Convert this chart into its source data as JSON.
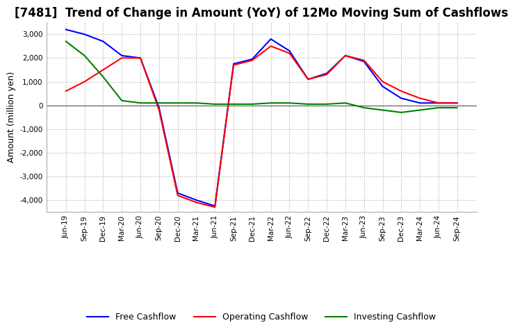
{
  "title": "[7481]  Trend of Change in Amount (YoY) of 12Mo Moving Sum of Cashflows",
  "ylabel": "Amount (million yen)",
  "x_labels": [
    "Jun-19",
    "Sep-19",
    "Dec-19",
    "Mar-20",
    "Jun-20",
    "Sep-20",
    "Dec-20",
    "Mar-21",
    "Jun-21",
    "Sep-21",
    "Dec-21",
    "Mar-22",
    "Jun-22",
    "Sep-22",
    "Dec-22",
    "Mar-23",
    "Jun-23",
    "Sep-23",
    "Dec-23",
    "Mar-24",
    "Jun-24",
    "Sep-24"
  ],
  "operating": [
    600,
    1000,
    1500,
    2000,
    2000,
    -200,
    -3800,
    -4100,
    -4300,
    1700,
    1900,
    2500,
    2200,
    1100,
    1300,
    2100,
    1900,
    1000,
    600,
    300,
    100,
    100
  ],
  "investing": [
    2700,
    2100,
    1200,
    200,
    100,
    100,
    100,
    100,
    50,
    50,
    50,
    100,
    100,
    50,
    50,
    100,
    -100,
    -200,
    -300,
    -200,
    -100,
    -100
  ],
  "free": [
    3200,
    3000,
    2700,
    2100,
    2000,
    -100,
    -3700,
    -4000,
    -4250,
    1750,
    1950,
    2800,
    2300,
    1100,
    1350,
    2100,
    1850,
    800,
    300,
    100,
    100,
    100
  ],
  "operating_color": "#ff0000",
  "investing_color": "#008000",
  "free_color": "#0000ff",
  "ylim": [
    -4500,
    3500
  ],
  "yticks": [
    -4000,
    -3000,
    -2000,
    -1000,
    0,
    1000,
    2000,
    3000
  ],
  "grid_color": "#aaaaaa",
  "background_color": "#ffffff",
  "title_fontsize": 12,
  "axis_fontsize": 9,
  "legend_fontsize": 9
}
